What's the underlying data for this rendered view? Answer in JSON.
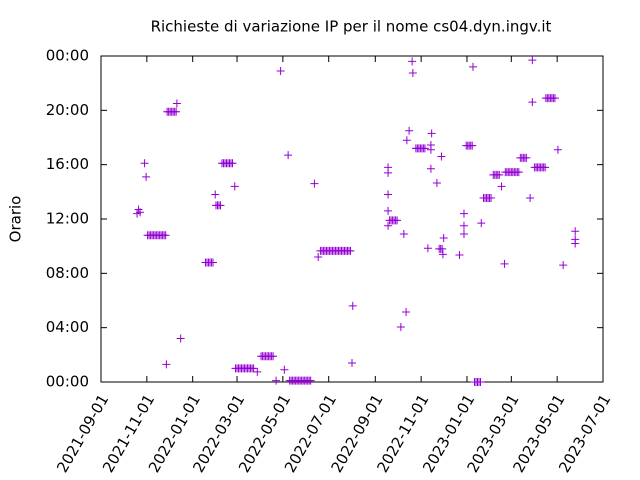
{
  "chart_data": {
    "type": "scatter",
    "title": "Richieste di variazione IP per il nome cs04.dyn.ingv.it",
    "y_label": "Orario",
    "color": "#9400d3",
    "marker": "+",
    "xlim": [
      "2021-09-01",
      "2023-07-01"
    ],
    "xticks": [
      "2021-09-01",
      "2021-11-01",
      "2022-01-01",
      "2022-03-01",
      "2022-05-01",
      "2022-07-01",
      "2022-09-01",
      "2022-11-01",
      "2023-01-01",
      "2023-03-01",
      "2023-05-01",
      "2023-07-01"
    ],
    "ylim": [
      0,
      24
    ],
    "yticks": [
      {
        "value": 0,
        "label": "00:00"
      },
      {
        "value": 4,
        "label": "04:00"
      },
      {
        "value": 8,
        "label": "08:00"
      },
      {
        "value": 12,
        "label": "12:00"
      },
      {
        "value": 16,
        "label": "16:00"
      },
      {
        "value": 20,
        "label": "20:00"
      },
      {
        "value": 24,
        "label": "00:00"
      }
    ],
    "x": [
      "2021-10-19",
      "2021-10-21",
      "2021-10-23",
      "2021-10-29",
      "2021-10-31",
      "2021-11-02",
      "2021-11-04",
      "2021-11-06",
      "2021-11-08",
      "2021-11-10",
      "2021-11-12",
      "2021-11-14",
      "2021-11-16",
      "2021-11-18",
      "2021-11-20",
      "2021-11-22",
      "2021-11-24",
      "2021-11-26",
      "2021-11-27",
      "2021-11-28",
      "2021-11-30",
      "2021-12-02",
      "2021-12-04",
      "2021-12-06",
      "2021-12-08",
      "2021-12-10",
      "2021-12-11",
      "2021-12-16",
      "2022-01-18",
      "2022-01-20",
      "2022-01-22",
      "2022-01-24",
      "2022-01-26",
      "2022-01-28",
      "2022-01-31",
      "2022-02-01",
      "2022-02-03",
      "2022-02-05",
      "2022-02-07",
      "2022-02-09",
      "2022-02-11",
      "2022-02-13",
      "2022-02-15",
      "2022-02-17",
      "2022-02-19",
      "2022-02-21",
      "2022-02-23",
      "2022-02-26",
      "2022-02-27",
      "2022-03-01",
      "2022-03-03",
      "2022-03-05",
      "2022-03-07",
      "2022-03-09",
      "2022-03-11",
      "2022-03-13",
      "2022-03-15",
      "2022-03-17",
      "2022-03-19",
      "2022-03-21",
      "2022-03-23",
      "2022-03-28",
      "2022-04-02",
      "2022-04-04",
      "2022-04-06",
      "2022-04-08",
      "2022-04-10",
      "2022-04-12",
      "2022-04-14",
      "2022-04-16",
      "2022-04-18",
      "2022-04-22",
      "2022-04-28",
      "2022-05-03",
      "2022-05-08",
      "2022-05-10",
      "2022-05-12",
      "2022-05-14",
      "2022-05-16",
      "2022-05-18",
      "2022-05-20",
      "2022-05-22",
      "2022-05-24",
      "2022-05-26",
      "2022-05-28",
      "2022-05-30",
      "2022-06-01",
      "2022-06-03",
      "2022-06-05",
      "2022-06-07",
      "2022-06-12",
      "2022-06-17",
      "2022-06-20",
      "2022-06-22",
      "2022-06-24",
      "2022-06-26",
      "2022-06-28",
      "2022-06-30",
      "2022-07-02",
      "2022-07-04",
      "2022-07-06",
      "2022-07-08",
      "2022-07-10",
      "2022-07-12",
      "2022-07-14",
      "2022-07-16",
      "2022-07-18",
      "2022-07-20",
      "2022-07-22",
      "2022-07-24",
      "2022-07-26",
      "2022-07-28",
      "2022-07-30",
      "2022-08-01",
      "2022-08-02",
      "2022-09-18",
      "2022-09-18",
      "2022-09-18",
      "2022-09-18",
      "2022-09-18",
      "2022-09-20",
      "2022-09-22",
      "2022-09-24",
      "2022-09-26",
      "2022-09-28",
      "2022-09-30",
      "2022-10-05",
      "2022-10-09",
      "2022-10-12",
      "2022-10-13",
      "2022-10-16",
      "2022-10-20",
      "2022-10-21",
      "2022-10-25",
      "2022-10-27",
      "2022-10-29",
      "2022-10-31",
      "2022-11-02",
      "2022-11-04",
      "2022-11-06",
      "2022-11-10",
      "2022-11-14",
      "2022-11-14",
      "2022-11-14",
      "2022-11-15",
      "2022-11-22",
      "2022-11-25",
      "2022-11-27",
      "2022-11-29",
      "2022-11-30",
      "2022-12-01",
      "2022-11-28",
      "2022-12-22",
      "2022-12-28",
      "2022-12-28",
      "2022-12-28",
      "2022-12-31",
      "2023-01-02",
      "2023-01-04",
      "2023-01-06",
      "2023-01-08",
      "2023-01-09",
      "2023-01-11",
      "2023-01-13",
      "2023-01-15",
      "2023-01-17",
      "2023-01-19",
      "2023-01-20",
      "2023-01-23",
      "2023-01-25",
      "2023-01-27",
      "2023-01-29",
      "2023-01-31",
      "2023-02-02",
      "2023-02-05",
      "2023-02-07",
      "2023-02-09",
      "2023-02-11",
      "2023-02-13",
      "2023-02-16",
      "2023-02-20",
      "2023-02-21",
      "2023-02-23",
      "2023-02-25",
      "2023-02-27",
      "2023-03-01",
      "2023-03-03",
      "2023-03-05",
      "2023-03-07",
      "2023-03-09",
      "2023-03-11",
      "2023-03-13",
      "2023-03-15",
      "2023-03-17",
      "2023-03-19",
      "2023-03-21",
      "2023-03-26",
      "2023-03-29",
      "2023-03-29",
      "2023-04-01",
      "2023-04-03",
      "2023-04-05",
      "2023-04-07",
      "2023-04-09",
      "2023-04-11",
      "2023-04-13",
      "2023-04-15",
      "2023-04-16",
      "2023-04-18",
      "2023-04-20",
      "2023-04-22",
      "2023-04-24",
      "2023-04-26",
      "2023-04-28",
      "2023-05-02",
      "2023-05-09",
      "2023-05-25",
      "2023-05-25",
      "2023-05-25"
    ],
    "values": [
      12.4,
      12.7,
      12.5,
      16.1,
      15.1,
      10.8,
      10.8,
      10.8,
      10.8,
      10.8,
      10.8,
      10.8,
      10.8,
      10.8,
      10.8,
      10.8,
      10.8,
      10.8,
      1.3,
      19.9,
      19.9,
      19.9,
      19.9,
      19.9,
      19.9,
      19.9,
      20.5,
      3.2,
      8.8,
      8.8,
      8.8,
      8.8,
      8.8,
      8.8,
      13.8,
      13.0,
      13.0,
      13.0,
      13.0,
      16.1,
      16.1,
      16.1,
      16.1,
      16.1,
      16.1,
      16.1,
      16.1,
      14.4,
      1.0,
      1.0,
      1.0,
      1.0,
      1.0,
      1.0,
      1.0,
      1.0,
      1.0,
      1.0,
      1.0,
      1.0,
      1.0,
      0.75,
      1.9,
      1.9,
      1.9,
      1.9,
      1.9,
      1.9,
      1.9,
      1.9,
      1.9,
      0.1,
      22.9,
      0.9,
      16.7,
      0.1,
      0.1,
      0.1,
      0.1,
      0.1,
      0.1,
      0.1,
      0.1,
      0.1,
      0.1,
      0.1,
      0.1,
      0.1,
      0.1,
      0.1,
      14.6,
      9.2,
      9.65,
      9.65,
      9.65,
      9.65,
      9.65,
      9.65,
      9.65,
      9.65,
      9.65,
      9.65,
      9.65,
      9.65,
      9.65,
      9.65,
      9.65,
      9.65,
      9.65,
      9.65,
      9.65,
      9.65,
      9.65,
      1.4,
      5.6,
      15.8,
      15.4,
      13.8,
      12.6,
      11.5,
      11.9,
      11.9,
      11.9,
      11.9,
      11.9,
      11.9,
      4.05,
      10.9,
      5.15,
      17.8,
      18.5,
      23.6,
      22.75,
      17.2,
      17.2,
      17.2,
      17.2,
      17.2,
      17.2,
      17.2,
      9.85,
      15.7,
      17.1,
      17.45,
      18.3,
      14.65,
      9.8,
      9.8,
      9.8,
      9.4,
      10.6,
      16.6,
      9.35,
      12.4,
      11.5,
      10.9,
      17.4,
      17.4,
      17.4,
      17.4,
      17.4,
      23.2,
      0,
      0,
      0,
      0,
      0,
      11.7,
      13.55,
      13.55,
      13.55,
      13.55,
      13.55,
      13.55,
      15.25,
      15.25,
      15.25,
      15.25,
      15.25,
      14.4,
      8.7,
      15.45,
      15.45,
      15.45,
      15.45,
      15.45,
      15.45,
      15.45,
      15.45,
      15.45,
      15.45,
      16.5,
      16.5,
      16.5,
      16.5,
      16.5,
      13.55,
      23.7,
      20.6,
      15.8,
      15.8,
      15.8,
      15.8,
      15.8,
      15.8,
      15.8,
      15.8,
      20.9,
      20.9,
      20.9,
      20.9,
      20.9,
      20.9,
      20.9,
      17.1,
      8.6,
      11.1,
      10.5,
      10.2
    ]
  }
}
